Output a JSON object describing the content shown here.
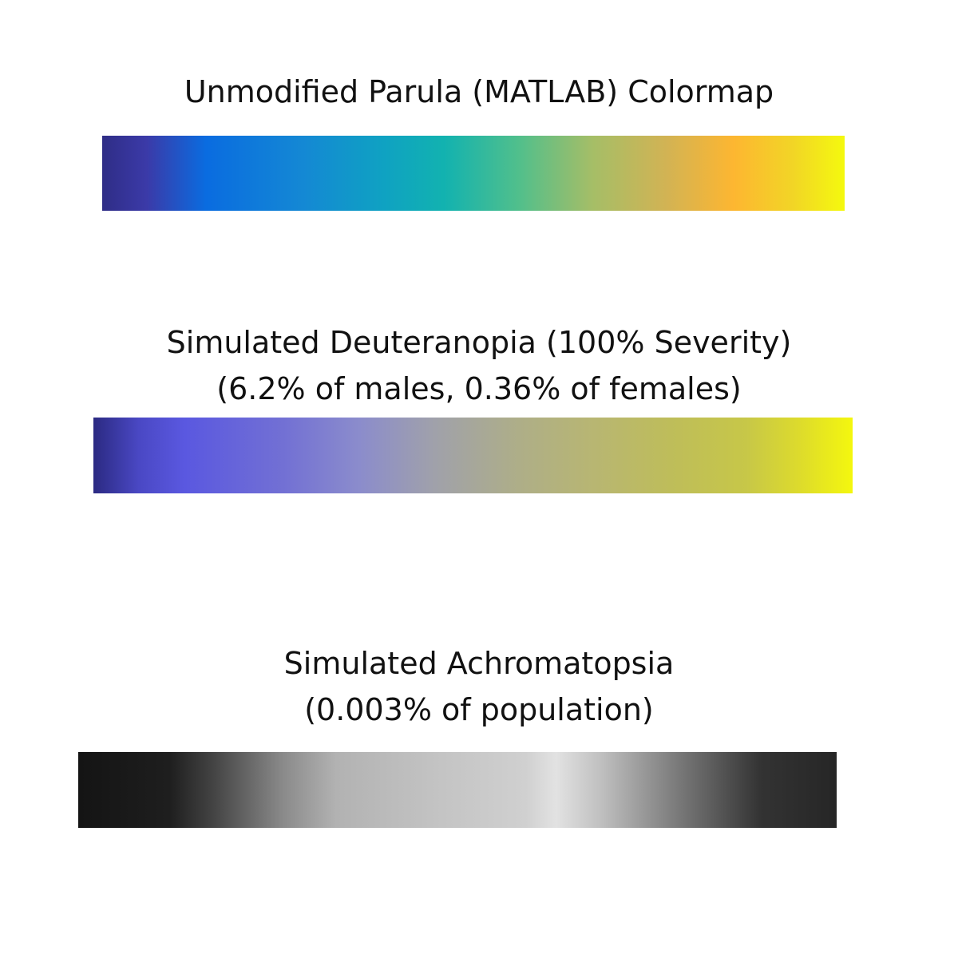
{
  "panels": [
    {
      "title_lines": [
        "Unmodified Parula (MATLAB) Colormap"
      ],
      "colormap": [
        {
          "pos": 0.0,
          "color": "#2f2d86"
        },
        {
          "pos": 0.06,
          "color": "#3b3aa8"
        },
        {
          "pos": 0.14,
          "color": "#0a6ce0"
        },
        {
          "pos": 0.27,
          "color": "#1488d4"
        },
        {
          "pos": 0.38,
          "color": "#0fa2c2"
        },
        {
          "pos": 0.46,
          "color": "#12b2b0"
        },
        {
          "pos": 0.56,
          "color": "#50bf8c"
        },
        {
          "pos": 0.66,
          "color": "#a5be67"
        },
        {
          "pos": 0.76,
          "color": "#d2b354"
        },
        {
          "pos": 0.85,
          "color": "#fdb631"
        },
        {
          "pos": 0.93,
          "color": "#f2d526"
        },
        {
          "pos": 1.0,
          "color": "#f4f90e"
        }
      ]
    },
    {
      "title_lines": [
        "Simulated Deuteranopia (100% Severity)",
        "(6.2% of males, 0.36% of females)"
      ],
      "colormap": [
        {
          "pos": 0.0,
          "color": "#2b2a82"
        },
        {
          "pos": 0.06,
          "color": "#4a48c4"
        },
        {
          "pos": 0.12,
          "color": "#5a58e0"
        },
        {
          "pos": 0.25,
          "color": "#7270d4"
        },
        {
          "pos": 0.35,
          "color": "#8b8ccc"
        },
        {
          "pos": 0.45,
          "color": "#a0a1aa"
        },
        {
          "pos": 0.56,
          "color": "#aeae88"
        },
        {
          "pos": 0.66,
          "color": "#b8b672"
        },
        {
          "pos": 0.76,
          "color": "#bebd5a"
        },
        {
          "pos": 0.86,
          "color": "#c7c748"
        },
        {
          "pos": 0.93,
          "color": "#dddb2c"
        },
        {
          "pos": 1.0,
          "color": "#f4f70e"
        }
      ]
    },
    {
      "title_lines": [
        "Simulated Achromatopsia",
        "(0.003% of population)"
      ],
      "colormap": [
        {
          "pos": 0.0,
          "color": "#141414"
        },
        {
          "pos": 0.12,
          "color": "#1e1e1e"
        },
        {
          "pos": 0.18,
          "color": "#454545"
        },
        {
          "pos": 0.27,
          "color": "#8a8a8a"
        },
        {
          "pos": 0.34,
          "color": "#b2b2b2"
        },
        {
          "pos": 0.48,
          "color": "#c4c4c4"
        },
        {
          "pos": 0.59,
          "color": "#d0d0d0"
        },
        {
          "pos": 0.63,
          "color": "#e2e2e2"
        },
        {
          "pos": 0.69,
          "color": "#bfbfbf"
        },
        {
          "pos": 0.79,
          "color": "#7a7a7a"
        },
        {
          "pos": 0.9,
          "color": "#333333"
        },
        {
          "pos": 1.0,
          "color": "#262626"
        }
      ]
    }
  ]
}
